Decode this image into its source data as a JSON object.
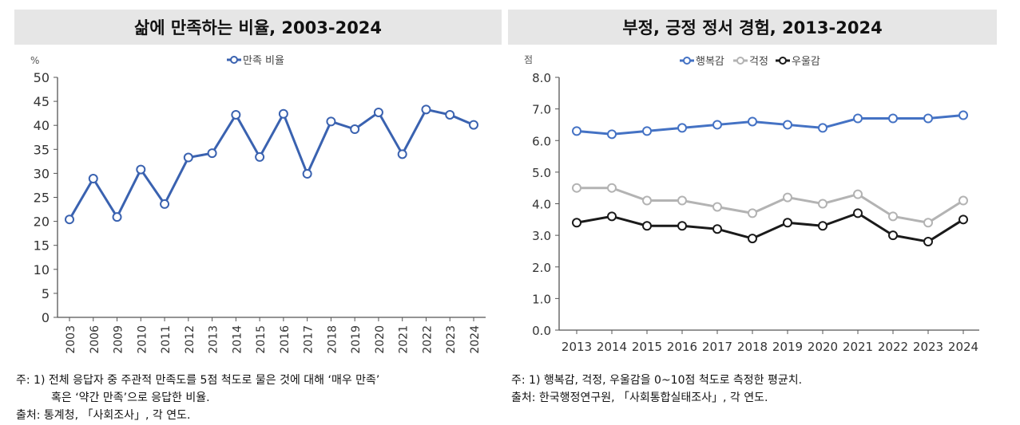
{
  "colors": {
    "happiness": "#4472c4",
    "worry": "#b3b3b3",
    "depression": "#1a1a1a",
    "satisfaction": "#3a62b0",
    "title_bg": "#e6e6e6"
  },
  "chart_data": [
    {
      "type": "line",
      "title": "삶에 만족하는 비율, 2003-2024",
      "unit": "%",
      "categories": [
        "2003",
        "2006",
        "2009",
        "2010",
        "2011",
        "2012",
        "2013",
        "2014",
        "2015",
        "2016",
        "2017",
        "2018",
        "2019",
        "2020",
        "2021",
        "2022",
        "2023",
        "2024"
      ],
      "series": [
        {
          "name": "만족 비율",
          "values": [
            20.4,
            28.9,
            20.9,
            30.8,
            23.6,
            33.3,
            34.2,
            42.2,
            33.4,
            42.4,
            29.9,
            40.8,
            39.2,
            42.7,
            34.0,
            43.3,
            42.2,
            40.1
          ]
        }
      ],
      "ylim": [
        0,
        50
      ],
      "yticks": [
        "0",
        "5",
        "10",
        "15",
        "20",
        "25",
        "30",
        "35",
        "40",
        "45",
        "50"
      ],
      "legend": "top-center",
      "grid": false
    },
    {
      "type": "line",
      "title": "부정, 긍정 정서 경험, 2013-2024",
      "unit": "점",
      "categories": [
        "2013",
        "2014",
        "2015",
        "2016",
        "2017",
        "2018",
        "2019",
        "2020",
        "2021",
        "2022",
        "2023",
        "2024"
      ],
      "series": [
        {
          "name": "행복감",
          "values": [
            6.3,
            6.2,
            6.3,
            6.4,
            6.5,
            6.6,
            6.5,
            6.4,
            6.7,
            6.7,
            6.7,
            6.8
          ]
        },
        {
          "name": "걱정",
          "values": [
            4.5,
            4.5,
            4.1,
            4.1,
            3.9,
            3.7,
            4.2,
            4.0,
            4.3,
            3.6,
            3.4,
            4.1
          ]
        },
        {
          "name": "우울감",
          "values": [
            3.4,
            3.6,
            3.3,
            3.3,
            3.2,
            2.9,
            3.4,
            3.3,
            3.7,
            3.0,
            2.8,
            3.5
          ]
        }
      ],
      "ylim": [
        0,
        8
      ],
      "yticks": [
        "0.0",
        "1.0",
        "2.0",
        "3.0",
        "4.0",
        "5.0",
        "6.0",
        "7.0",
        "8.0"
      ],
      "legend": "top-center",
      "grid": false
    }
  ],
  "notes": {
    "left_line1": "주: 1) 전체 응답자 중 주관적 만족도를 5점 척도로 물은 것에 대해 ‘매우 만족’",
    "left_line2": "혹은 ‘약간 만족’으로 응답한 비율.",
    "left_source": "출처: 통계청, 「사회조사」, 각 연도.",
    "right_line1": "주: 1) 행복감, 걱정, 우울감을 0~10점 척도로 측정한 평균치.",
    "right_source": "출처: 한국행정연구원, 「사회통합실태조사」, 각 연도."
  }
}
